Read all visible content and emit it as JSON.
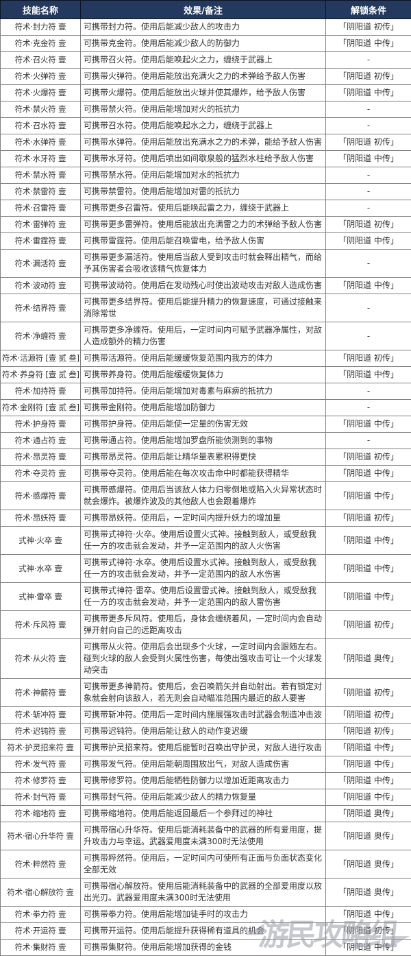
{
  "colors": {
    "header_bg": "#24395e",
    "header_text": "#ffffff",
    "border": "#7f7f7f",
    "body_text": "#333333"
  },
  "watermark": {
    "text": "游民攻略组"
  },
  "table": {
    "headers": {
      "name": "技能名称",
      "effect": "效果/备注",
      "unlock": "解锁条件"
    },
    "rows": [
      {
        "name": "符术·封力符 壹",
        "effect": "可携带封力符。使用后能减少敌人的攻击力",
        "unlock": "「阴阳道 初传」"
      },
      {
        "name": "符术·克金符 壹",
        "effect": "可携带克金符。使用后能减少敌人的防御力",
        "unlock": "「阴阳道 中传」"
      },
      {
        "name": "符术·召火符 壹",
        "effect": "可携带召火符。使用后能唤起火之力，缠绕于武器上",
        "unlock": "-"
      },
      {
        "name": "符术·火弹符 壹",
        "effect": "可携带火弹符。使用后能放出充满火之力的术弹给予敌人伤害",
        "unlock": "「阴阳道 初传」"
      },
      {
        "name": "符术·火爆符 壹",
        "effect": "可携带火爆符。使用后能放出火球并使其爆炸，给予敌人伤害",
        "unlock": "「阴阳道 中传」"
      },
      {
        "name": "符术·禁火符 壹",
        "effect": "可携带禁火符。使用后能增加对火的抵抗力",
        "unlock": "-"
      },
      {
        "name": "符术·召水符 壹",
        "effect": "可携带召水符。使用后能唤起水之力，缠绕于武器上",
        "unlock": "-"
      },
      {
        "name": "符术·水弹符 壹",
        "effect": "可携带水弹符。使用后能放出充满水之力的术弹，能给予敌人伤害",
        "unlock": "「阴阳道 初传」"
      },
      {
        "name": "符术·水牙符 壹",
        "effect": "可携带水牙符。使用后喷出如间歇泉般的猛烈水柱给予敌人伤害",
        "unlock": "「阴阳道 中传」"
      },
      {
        "name": "符术·禁水符 壹",
        "effect": "可携带禁水符。使用后能增加对水的抵抗力",
        "unlock": "-"
      },
      {
        "name": "符术·禁雷符 壹",
        "effect": "可携带禁雷符。使用后能增加对雷的抵抗力",
        "unlock": "-"
      },
      {
        "name": "符术·召雷符 壹",
        "effect": "可携带更多召雷符。使用后能唤起雷之力，缠绕于武器上",
        "unlock": "-"
      },
      {
        "name": "符术·雷弹符 壹",
        "effect": "可携带更多雷弹符。使用后能放出充满雷之力的术弹给予敌人伤害",
        "unlock": "「阴阳道 初传」"
      },
      {
        "name": "符术·雷霆符 壹",
        "effect": "可携带雷霆符。使用后能召唤雷电，给予敌人伤害",
        "unlock": "「阴阳道 中传」"
      },
      {
        "name": "符术·漏活符 壹",
        "effect": "可携带更多漏活符。使用后当敌人受到攻击时就会释出精气，而给予其伤害者会吸收该精气恢复体力",
        "unlock": "-"
      },
      {
        "name": "符术·波动符 壹",
        "effect": "可携带波动符。使用后在发动残心时使出波动攻击对敌人造成伤害",
        "unlock": "「阴阳道 中传」"
      },
      {
        "name": "符术·结界符 壹",
        "effect": "可携带更多结界符。使用后能提升精力的恢复速度，可通过接触来消除常世",
        "unlock": "-"
      },
      {
        "name": "符术·净缠符 壹",
        "effect": "可携带更多净缠符。使用后，一定时间内可赋予武器净属性，对敌人造成额外的精力伤害",
        "unlock": "-"
      },
      {
        "name": "符术·活源符 [壹 贰 叁]",
        "effect": "可携带活源符。使用后能缓缓恢复范围内我方的体力",
        "unlock": "「阴阳道 初传」"
      },
      {
        "name": "符术·养身符 [壹 贰 叁]",
        "effect": "可携带养身符。使用后能缓缓恢复体力",
        "unlock": "「阴阳道 中传」"
      },
      {
        "name": "符术·加持符 壹",
        "effect": "可携带加持符。使用后能增加对毒素与麻痹的抵抗力",
        "unlock": "-"
      },
      {
        "name": "符术·金刚符 [壹 贰 叁]",
        "effect": "可携带金刚符。使用后能增加防御力",
        "unlock": "-"
      },
      {
        "name": "符术·护身符 壹",
        "effect": "可携带护身符。使用后能使一定量的伤害无效",
        "unlock": "「阴阳道 中传」"
      },
      {
        "name": "符术·通占符 壹",
        "effect": "可携带通占符。使用后能增加罗盘所能侦测到的事物",
        "unlock": "-"
      },
      {
        "name": "符术·昂灵符 壹",
        "effect": "可携带昂灵符。使用后能让精华量表累积得更快",
        "unlock": "「阴阳道 初传」"
      },
      {
        "name": "符术·夺灵符 壹",
        "effect": "可携带夺灵符。使用后能在每次攻击命中时都能获得精华",
        "unlock": "「阴阳道 中传」"
      },
      {
        "name": "符术·慼爆符 壹",
        "effect": "可携带慼爆符。使用后当该敌人体力归零倒地或陷入火异常状态时就会爆炸。被爆炸波及的其他敌人也会跟着爆炸",
        "unlock": "「阴阳道 中传」"
      },
      {
        "name": "符术·昂妖符 壹",
        "effect": "可携带昂妖符。使用后，一定时间内提升妖力的增加量",
        "unlock": "「阴阳道 初传」"
      },
      {
        "name": "式神·火卒 壹",
        "effect": "可携带式神符·火卒。使用后设置火式神。接触到敌人，或受敌我任一方的攻击就会发动，并予一定范围内的敌人火伤害",
        "unlock": "「阴阳道 中传」"
      },
      {
        "name": "式神·水卒 壹",
        "effect": "可携带式神符·水卒。使用后设置水式神。接触到敌人，或受敌我任一方的攻击就会发动，并予一定范围内的敌人水伤害",
        "unlock": "「阴阳道 中传」"
      },
      {
        "name": "式神·雷卒 壹",
        "effect": "可携带式神符·雷卒。使用后设置雷式神。接触到敌人，或受敌我任一方的攻击就会发动，并予一定范围内的敌人雷伤害",
        "unlock": "「阴阳道 中传」"
      },
      {
        "name": "符术·斥风符 壹",
        "effect": "可携带更多斥风符。使用后，身体会缠绕着风，一定时间内会自动弹开射向自己的远距离攻击",
        "unlock": "「阴阳道 初传」"
      },
      {
        "name": "符术·从火符 壹",
        "effect": "可携带从火符。使用后会出现多个火球，一定时间内会跟随左右。碰到火球的敌人会受到火属性伤害，每使出强攻击可让一个火球发动突击",
        "unlock": "「阴阳道 奥传」"
      },
      {
        "name": "符术·神箭符 壹",
        "effect": "可携带更多神箭符。使用后，会召唤箭矢并自动射出。若有锁定对象就会射向该敌人，若无则会自动瞄准范围内最近的敌人要害",
        "unlock": "「阴阳道 初传」"
      },
      {
        "name": "符术·斩冲符 壹",
        "effect": "可携带斩冲符。使用后一定时间内施展强攻击时武器会制造冲击波",
        "unlock": "「阴阳道 初传」"
      },
      {
        "name": "符术·迟钝符 壹",
        "effect": "可携带迟钝符。使用后能让敌人的动作变迟缓",
        "unlock": "「阴阳道 初传」"
      },
      {
        "name": "符术·护灵招来符 壹",
        "effect": "可携带护灵招来符。使用后能暂时召唤出守护灵，对敌人进行攻击",
        "unlock": "「阴阳道 中传」"
      },
      {
        "name": "符术·发气符 壹",
        "effect": "可携带发气符。使用后能朝周围放出气，对敌人造成伤害",
        "unlock": "「阴阳道 中传」"
      },
      {
        "name": "符术·修罗符 壹",
        "effect": "可携带修罗符。使用后能牺牲防御力以增加近距离攻击力",
        "unlock": "「阴阳道 中传」"
      },
      {
        "name": "符术·封气符 壹",
        "effect": "可携带封气符。使用后能减少敌人的精力恢复量",
        "unlock": "「阴阳道 中传」"
      },
      {
        "name": "符术·缩地符 壹",
        "effect": "可携带缩地符。使用后能返回最后一个参拜过的神社",
        "unlock": "「阴阳道 奥传」"
      },
      {
        "name": "符术·宿心升华符 壹",
        "effect": "可携带宿心升华符。使用后能消耗装备中的武器的所有爱用度，提升攻击力与幸运。武器爱用度未满300时无法使用",
        "unlock": "「阴阳道 奥传」"
      },
      {
        "name": "符术·粹然符 壹",
        "effect": "可携带粹然符。使用后，一定时间内可使所有正面与负面状态变化全部无效",
        "unlock": "「阴阳道 奥传」"
      },
      {
        "name": "符术·宿心解放符 壹",
        "effect": "可携带宿心解放符。使用后能消耗装备中的武器的全部爱用度以放出光刃。武器爱用度未满300时无法使用",
        "unlock": "「阴阳道 奥传」"
      },
      {
        "name": "符术·拳力符 壹",
        "effect": "可携带拳力符。使用后能增加徒手时的攻击力",
        "unlock": "「阴阳道 中传」"
      },
      {
        "name": "符术·开运符 壹",
        "effect": "可携带开运符。使用后能提升获得稀有道具的机会",
        "unlock": "「阴阳道 初传」"
      },
      {
        "name": "符术·集财符 壹",
        "effect": "可携带集财符。使用后能增加获得的金钱",
        "unlock": "「阴阳道 中传」"
      }
    ]
  }
}
